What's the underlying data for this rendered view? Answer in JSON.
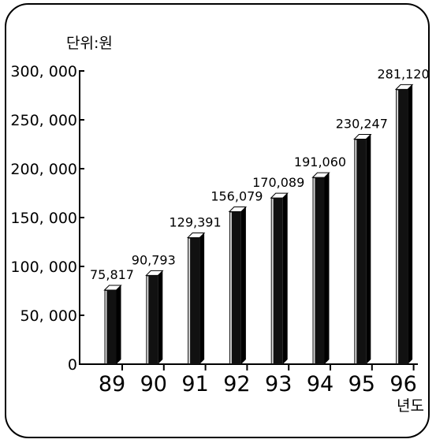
{
  "chart_data": {
    "type": "bar",
    "y_unit_label": "단위:원",
    "x_unit_label": "년도",
    "categories": [
      "89",
      "90",
      "91",
      "92",
      "93",
      "94",
      "95",
      "96"
    ],
    "values": [
      75817,
      90793,
      129391,
      156079,
      170089,
      191060,
      230247,
      281120
    ],
    "value_labels": [
      "75,817",
      "90,793",
      "129,391",
      "156,079",
      "170,089",
      "191,060",
      "230,247",
      "281,120"
    ],
    "y_ticks": [
      0,
      50000,
      100000,
      150000,
      200000,
      250000,
      300000
    ],
    "y_tick_labels": [
      "0",
      "50, 000",
      "100, 000",
      "150, 000",
      "200, 000",
      "250, 000",
      "300, 000"
    ],
    "ylim": [
      0,
      300000
    ],
    "grid": false,
    "legend": "none",
    "colors": {
      "bar": "#111111",
      "bar_highlight": "#d8d8d8",
      "axis": "#000000"
    }
  }
}
